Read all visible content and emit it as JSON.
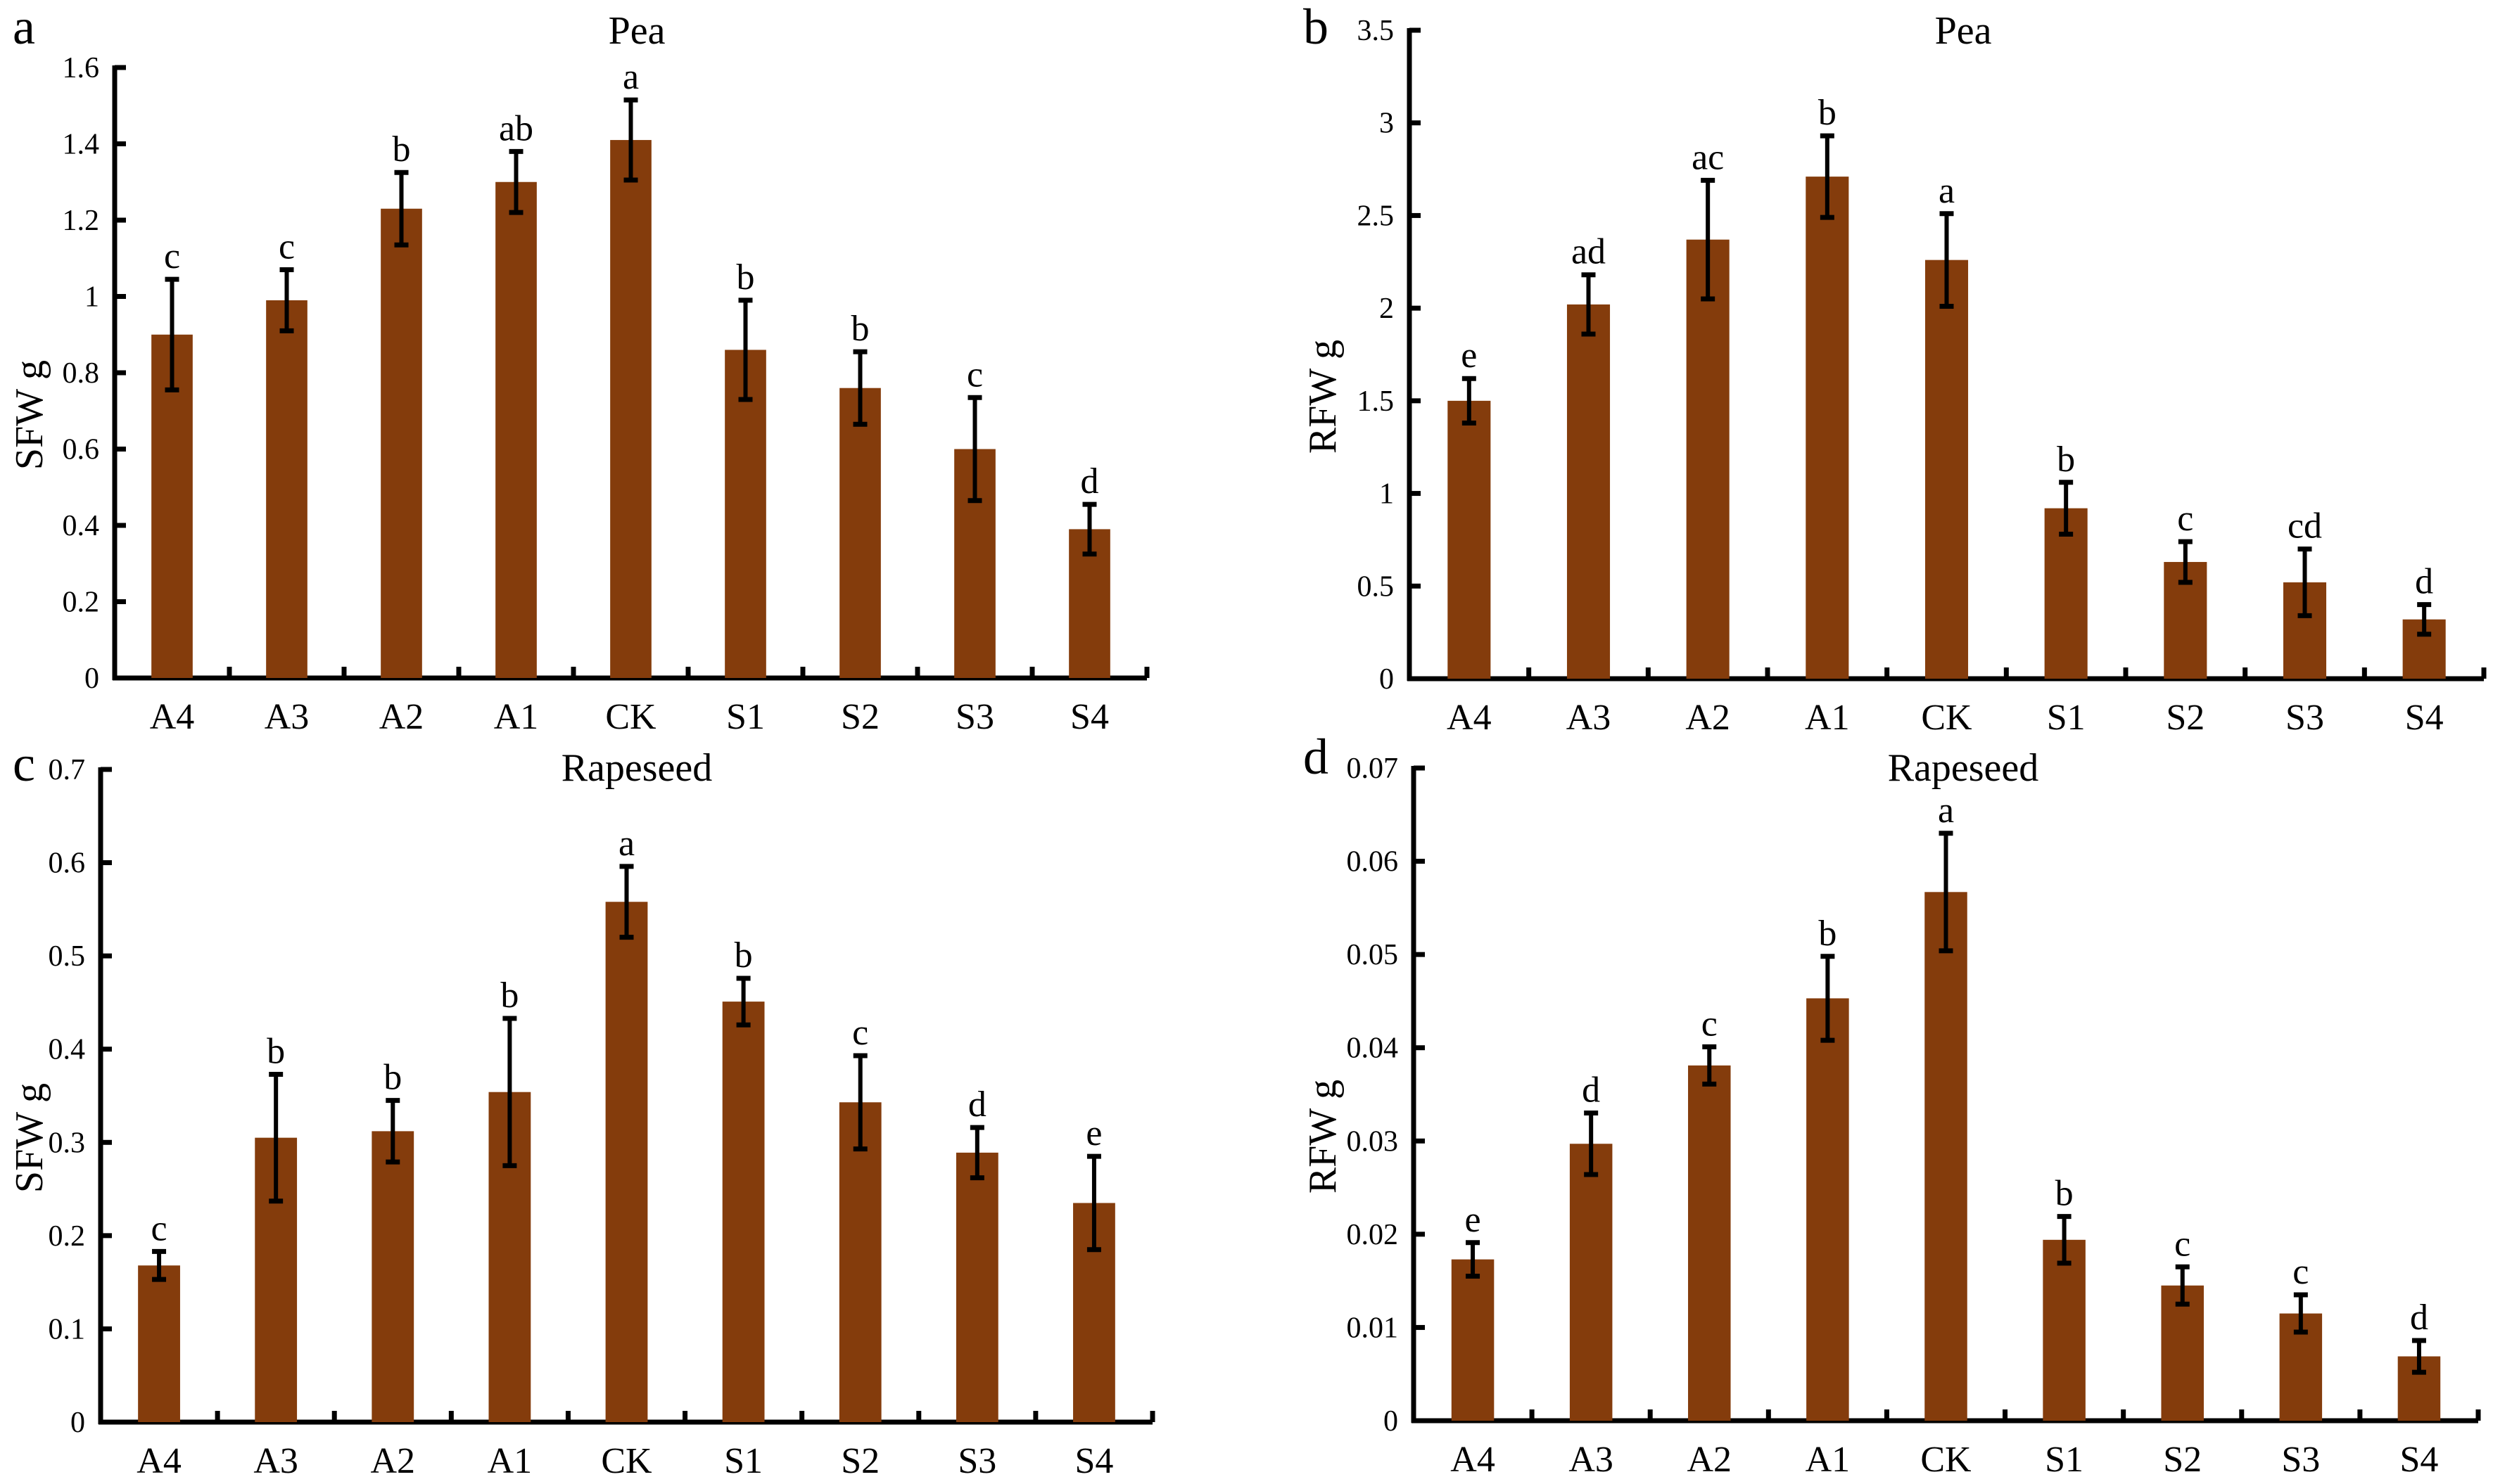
{
  "figure": {
    "bar_color": "#843C0C",
    "axis_color": "#000000"
  },
  "chart_data": [
    {
      "panel": "a",
      "type": "bar",
      "title": "Pea",
      "xlabel": "",
      "ylabel": "SFW g",
      "ylim": [
        0,
        1.6
      ],
      "yticks": [
        "0",
        "0.2",
        "0.4",
        "0.6",
        "0.8",
        "1",
        "1.2",
        "1.4",
        "1.6"
      ],
      "ytick_values": [
        0,
        0.2,
        0.4,
        0.6,
        0.8,
        1.0,
        1.2,
        1.4,
        1.6
      ],
      "grid": false,
      "categories": [
        "A4",
        "A3",
        "A2",
        "A1",
        "CK",
        "S1",
        "S2",
        "S3",
        "S4"
      ],
      "values": [
        0.9,
        0.99,
        1.23,
        1.3,
        1.41,
        0.86,
        0.76,
        0.6,
        0.39
      ],
      "errors": [
        0.145,
        0.08,
        0.095,
        0.08,
        0.105,
        0.13,
        0.095,
        0.135,
        0.065
      ],
      "significance": [
        "c",
        "c",
        "b",
        "ab",
        "a",
        "b",
        "b",
        "c",
        "d"
      ]
    },
    {
      "panel": "b",
      "type": "bar",
      "title": "Pea",
      "xlabel": "",
      "ylabel": "RFW g",
      "ylim": [
        0,
        3.5
      ],
      "yticks": [
        "0",
        "0.5",
        "1",
        "1.5",
        "2",
        "2.5",
        "3",
        "3.5"
      ],
      "ytick_values": [
        0,
        0.5,
        1.0,
        1.5,
        2.0,
        2.5,
        3.0,
        3.5
      ],
      "grid": false,
      "categories": [
        "A4",
        "A3",
        "A2",
        "A1",
        "CK",
        "S1",
        "S2",
        "S3",
        "S4"
      ],
      "values": [
        1.5,
        2.02,
        2.37,
        2.71,
        2.26,
        0.92,
        0.63,
        0.52,
        0.32
      ],
      "errors": [
        0.12,
        0.16,
        0.32,
        0.22,
        0.25,
        0.14,
        0.11,
        0.18,
        0.08
      ],
      "significance": [
        "e",
        "ad",
        "ac",
        "b",
        "a",
        "b",
        "c",
        "cd",
        "d"
      ]
    },
    {
      "panel": "c",
      "type": "bar",
      "title": "Rapeseed",
      "xlabel": "",
      "ylabel": "SFW g",
      "ylim": [
        0,
        0.7
      ],
      "yticks": [
        "0",
        "0.1",
        "0.2",
        "0.3",
        "0.4",
        "0.5",
        "0.6",
        "0.7"
      ],
      "ytick_values": [
        0,
        0.1,
        0.2,
        0.3,
        0.4,
        0.5,
        0.6,
        0.7
      ],
      "grid": false,
      "categories": [
        "A4",
        "A3",
        "A2",
        "A1",
        "CK",
        "S1",
        "S2",
        "S3",
        "S4"
      ],
      "values": [
        0.168,
        0.305,
        0.312,
        0.354,
        0.558,
        0.451,
        0.343,
        0.289,
        0.235
      ],
      "errors": [
        0.015,
        0.068,
        0.033,
        0.079,
        0.038,
        0.025,
        0.05,
        0.027,
        0.05
      ],
      "significance": [
        "c",
        "b",
        "b",
        "b",
        "a",
        "b",
        "c",
        "d",
        "e"
      ]
    },
    {
      "panel": "d",
      "type": "bar",
      "title": "Rapeseed",
      "xlabel": "",
      "ylabel": "RFW g",
      "ylim": [
        0,
        0.07
      ],
      "yticks": [
        "0",
        "0.01",
        "0.02",
        "0.03",
        "0.04",
        "0.05",
        "0.06",
        "0.07"
      ],
      "ytick_values": [
        0,
        0.01,
        0.02,
        0.03,
        0.04,
        0.05,
        0.06,
        0.07
      ],
      "grid": false,
      "categories": [
        "A4",
        "A3",
        "A2",
        "A1",
        "CK",
        "S1",
        "S2",
        "S3",
        "S4"
      ],
      "values": [
        0.0173,
        0.0297,
        0.0381,
        0.0453,
        0.0567,
        0.0194,
        0.0145,
        0.0115,
        0.0069
      ],
      "errors": [
        0.0018,
        0.0033,
        0.002,
        0.0045,
        0.0063,
        0.0025,
        0.002,
        0.002,
        0.0017
      ],
      "significance": [
        "e",
        "d",
        "c",
        "b",
        "a",
        "b",
        "c",
        "c",
        "d"
      ]
    }
  ]
}
